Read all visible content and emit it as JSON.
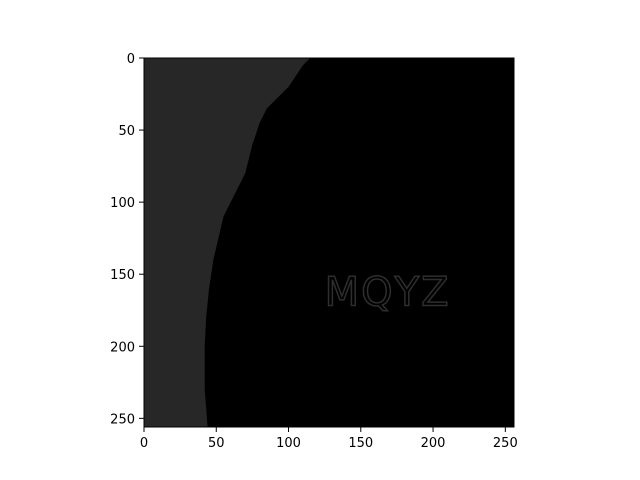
{
  "chart_data": {
    "type": "image",
    "title": "",
    "xlabel": "",
    "ylabel": "",
    "image_size": [
      256,
      256
    ],
    "xlim": [
      0,
      256
    ],
    "ylim": [
      256,
      0
    ],
    "x_ticks": [
      0,
      50,
      100,
      150,
      200,
      250
    ],
    "y_ticks": [
      0,
      50,
      100,
      150,
      200,
      250
    ],
    "x_tick_labels": [
      "0",
      "50",
      "100",
      "150",
      "200",
      "250"
    ],
    "y_tick_labels": [
      "0",
      "50",
      "100",
      "150",
      "200",
      "250"
    ],
    "overlay_text": "MQYZ",
    "overlay_text_position": [
      125,
      162
    ],
    "colors": {
      "dark_gray_region": "#272727",
      "black_region": "#000000",
      "overlay_text": "#2e2e2e",
      "axis": "#000000"
    },
    "region_boundary": [
      [
        0,
        0
      ],
      [
        115,
        0
      ],
      [
        110,
        5
      ],
      [
        100,
        20
      ],
      [
        90,
        30
      ],
      [
        85,
        35
      ],
      [
        80,
        45
      ],
      [
        75,
        60
      ],
      [
        70,
        80
      ],
      [
        60,
        100
      ],
      [
        55,
        110
      ],
      [
        48,
        140
      ],
      [
        45,
        160
      ],
      [
        43,
        180
      ],
      [
        42,
        200
      ],
      [
        42,
        230
      ],
      [
        44,
        256
      ],
      [
        0,
        256
      ]
    ]
  }
}
